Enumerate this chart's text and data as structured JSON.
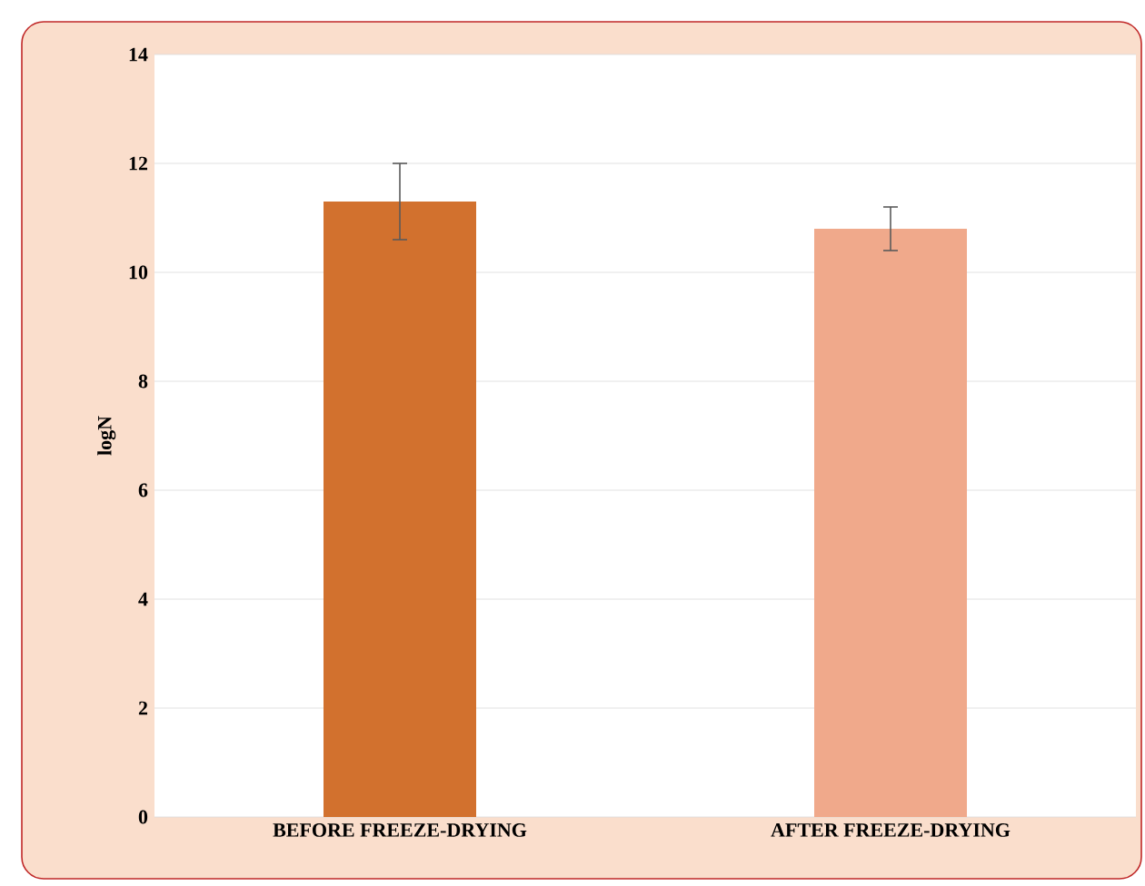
{
  "chart_data": {
    "type": "bar",
    "ylabel": "logN",
    "categories": [
      "BEFORE FREEZE-DRYING",
      "AFTER FREEZE-DRYING"
    ],
    "values": [
      11.3,
      10.8
    ],
    "colors": [
      "#d2712e",
      "#f0a98b"
    ],
    "errors": [
      [
        10.6,
        12.0
      ],
      [
        10.4,
        11.2
      ]
    ],
    "ylim": [
      0,
      14
    ],
    "yticks": [
      0,
      2,
      4,
      6,
      8,
      10,
      12,
      14
    ],
    "grid": "y"
  }
}
